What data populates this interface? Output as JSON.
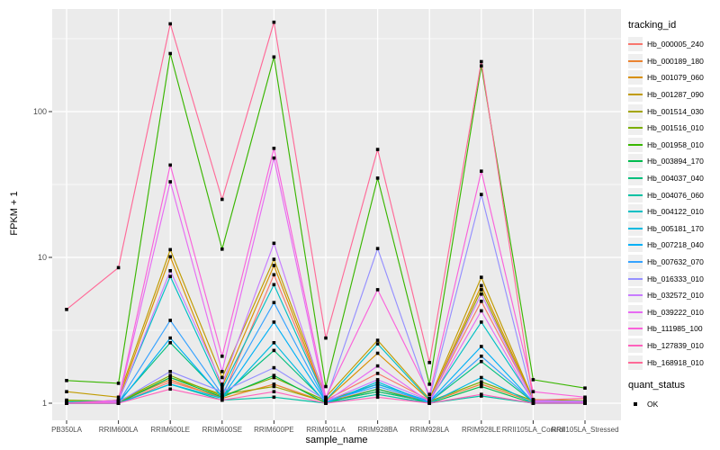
{
  "figure": {
    "bg": "#FFFFFF",
    "panel_bg": "#EBEBEB",
    "grid_color": "#FFFFFF",
    "tick_color": "#333333",
    "tick_text_color": "#4D4D4D",
    "point_color": "#000000"
  },
  "axes": {
    "x_title": "sample_name",
    "y_title": "FPKM + 1",
    "y_tick_labels": [
      "100",
      "10",
      "1"
    ],
    "y_tick_values": [
      100,
      10,
      1
    ],
    "y_minor_values": [
      316.23,
      31.623,
      3.1623
    ]
  },
  "legend": {
    "tracking_title": "tracking_id",
    "quant_title": "quant_status",
    "quant_items": [
      "OK"
    ]
  },
  "chart_data": {
    "type": "line",
    "title": "",
    "xlabel": "sample_name",
    "ylabel": "FPKM + 1",
    "y_scale": "log10",
    "ylim": [
      0.76,
      505
    ],
    "grid": true,
    "legend_position": "right",
    "point_shape": "square",
    "point_legend_label": "OK",
    "categories": [
      "PB350LA",
      "RRIM600LA",
      "RRIM600LE",
      "RRIM600SE",
      "RRIM600PE",
      "RRIM901LA",
      "RRIM928BA",
      "RRIM928LA",
      "RRIM928LE",
      "RRII105LA_Control",
      "RRII105LA_Stressed"
    ],
    "series": [
      {
        "name": "Hb_000005_240",
        "color": "#F8766D",
        "values": [
          1.0,
          1.0,
          1.4,
          1.1,
          7.6,
          1.05,
          1.6,
          1.05,
          5.0,
          1.05,
          1.03
        ]
      },
      {
        "name": "Hb_000189_180",
        "color": "#EA8331",
        "values": [
          1.0,
          1.02,
          1.45,
          1.08,
          1.35,
          1.02,
          1.25,
          1.02,
          1.35,
          1.02,
          1.02
        ]
      },
      {
        "name": "Hb_001079_060",
        "color": "#D89000",
        "values": [
          1.0,
          1.05,
          10.1,
          1.3,
          8.8,
          1.05,
          2.2,
          1.05,
          6.4,
          1.05,
          1.02
        ]
      },
      {
        "name": "Hb_001287_090",
        "color": "#C09B00",
        "values": [
          1.2,
          1.1,
          11.3,
          1.5,
          9.7,
          1.1,
          2.7,
          1.07,
          7.3,
          1.06,
          1.04
        ]
      },
      {
        "name": "Hb_001514_030",
        "color": "#A3A500",
        "values": [
          1.03,
          1.02,
          1.5,
          1.15,
          1.3,
          1.02,
          1.2,
          1.02,
          6.0,
          1.02,
          1.02
        ]
      },
      {
        "name": "Hb_001516_010",
        "color": "#7CAE00",
        "values": [
          1.05,
          1.03,
          1.55,
          1.12,
          1.5,
          1.04,
          1.35,
          1.03,
          1.4,
          1.04,
          1.02
        ]
      },
      {
        "name": "Hb_001958_010",
        "color": "#39B600",
        "values": [
          1.43,
          1.37,
          250,
          11.4,
          237,
          1.3,
          35,
          1.35,
          206,
          1.45,
          1.27
        ]
      },
      {
        "name": "Hb_003894_170",
        "color": "#00BB4E",
        "values": [
          1.0,
          1.0,
          1.5,
          1.1,
          1.55,
          1.0,
          1.25,
          1.0,
          1.3,
          1.0,
          1.0
        ]
      },
      {
        "name": "Hb_004037_040",
        "color": "#00BF7D",
        "values": [
          1.0,
          1.02,
          2.6,
          1.12,
          2.3,
          1.02,
          1.2,
          1.02,
          1.93,
          1.02,
          1.01
        ]
      },
      {
        "name": "Hb_004076_060",
        "color": "#00C1A3",
        "values": [
          1.0,
          1.0,
          1.35,
          1.05,
          1.1,
          1.0,
          1.15,
          1.0,
          1.12,
          1.0,
          1.0
        ]
      },
      {
        "name": "Hb_004122_010",
        "color": "#00BFC4",
        "values": [
          1.02,
          1.04,
          7.4,
          1.25,
          6.5,
          1.05,
          2.55,
          1.05,
          3.6,
          1.04,
          1.03
        ]
      },
      {
        "name": "Hb_005181_170",
        "color": "#00BAE0",
        "values": [
          1.0,
          1.0,
          1.35,
          1.08,
          2.6,
          1.0,
          1.4,
          1.0,
          1.5,
          1.0,
          1.0
        ]
      },
      {
        "name": "Hb_007218_040",
        "color": "#00B0F6",
        "values": [
          1.0,
          1.0,
          2.8,
          1.1,
          3.6,
          1.02,
          1.35,
          1.03,
          2.45,
          1.02,
          1.02
        ]
      },
      {
        "name": "Hb_007632_070",
        "color": "#35A2FF",
        "values": [
          1.0,
          1.01,
          3.7,
          1.15,
          4.9,
          1.03,
          1.3,
          1.02,
          2.1,
          1.03,
          1.01
        ]
      },
      {
        "name": "Hb_016333_010",
        "color": "#9590FF",
        "values": [
          1.0,
          1.02,
          1.65,
          1.2,
          1.75,
          1.05,
          11.5,
          1.08,
          27,
          1.04,
          1.03
        ]
      },
      {
        "name": "Hb_032572_010",
        "color": "#C77CFF",
        "values": [
          1.0,
          1.03,
          8.1,
          1.35,
          12.5,
          1.03,
          1.45,
          1.04,
          5.6,
          1.03,
          1.02
        ]
      },
      {
        "name": "Hb_039222_010",
        "color": "#E76BF3",
        "values": [
          1.0,
          1.02,
          33,
          1.65,
          48,
          1.02,
          1.8,
          1.02,
          4.3,
          1.02,
          1.02
        ]
      },
      {
        "name": "Hb_111985_100",
        "color": "#FA62DB",
        "values": [
          1.0,
          1.05,
          43,
          2.1,
          56,
          1.1,
          6.0,
          1.15,
          39,
          1.2,
          1.1
        ]
      },
      {
        "name": "Hb_127839_010",
        "color": "#FF62BC",
        "values": [
          1.0,
          1.0,
          1.25,
          1.05,
          1.2,
          1.0,
          1.1,
          1.0,
          1.15,
          1.0,
          1.0
        ]
      },
      {
        "name": "Hb_168918_010",
        "color": "#FF6A98",
        "values": [
          4.4,
          8.5,
          400,
          25,
          410,
          2.8,
          55,
          1.9,
          220,
          1.05,
          1.08
        ]
      }
    ]
  }
}
